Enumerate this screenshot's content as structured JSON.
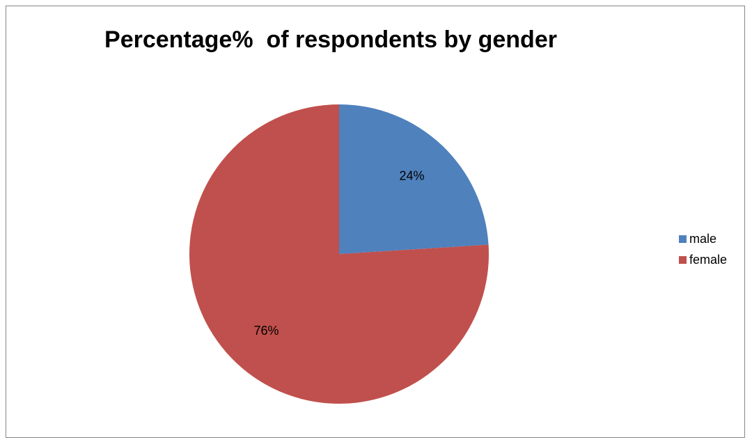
{
  "chart_data": {
    "type": "pie",
    "title": "Percentage%  of respondents by gender",
    "categories": [
      "male",
      "female"
    ],
    "values": [
      24,
      76
    ],
    "labels": [
      "24%",
      "76%"
    ],
    "colors": [
      "#4F81BD",
      "#C0504D"
    ],
    "legend_position": "right"
  }
}
